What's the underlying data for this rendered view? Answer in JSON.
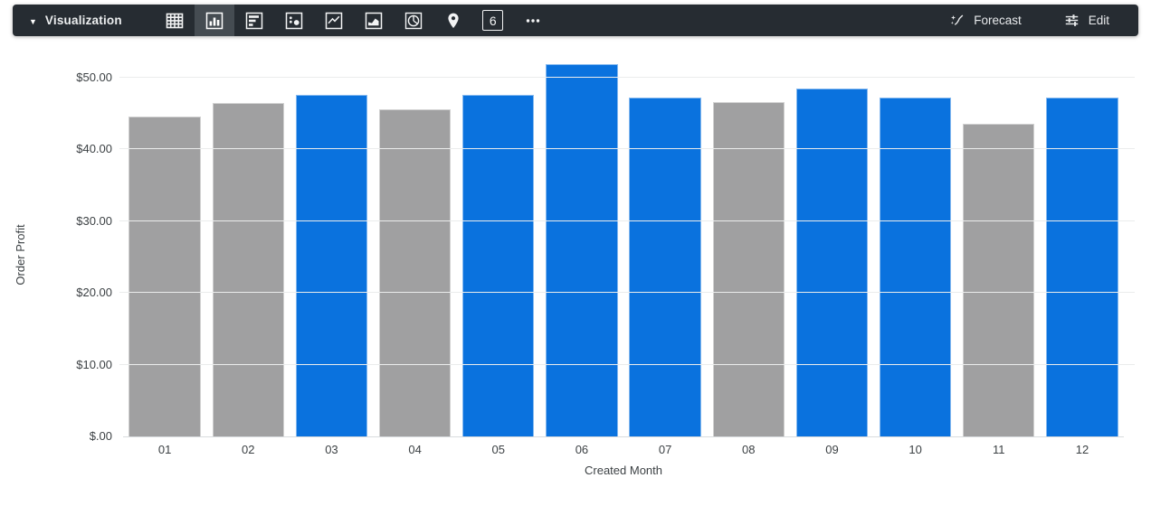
{
  "toolbar": {
    "title": "Visualization",
    "viz_types": [
      {
        "name": "table"
      },
      {
        "name": "column",
        "selected": true
      },
      {
        "name": "bar"
      },
      {
        "name": "scatter"
      },
      {
        "name": "line"
      },
      {
        "name": "area"
      },
      {
        "name": "pie"
      },
      {
        "name": "map"
      },
      {
        "name": "single-value",
        "glyph": "6"
      },
      {
        "name": "more"
      }
    ],
    "single_value_glyph": "6",
    "forecast_label": "Forecast",
    "edit_label": "Edit"
  },
  "chart_data": {
    "type": "bar",
    "title": "",
    "xlabel": "Created Month",
    "ylabel": "Order Profit",
    "categories": [
      "01",
      "02",
      "03",
      "04",
      "05",
      "06",
      "07",
      "08",
      "09",
      "10",
      "11",
      "12"
    ],
    "values": [
      44.5,
      46.4,
      47.6,
      45.5,
      47.6,
      51.9,
      47.2,
      46.6,
      48.5,
      47.2,
      43.6,
      47.2
    ],
    "bar_colors": [
      "gray",
      "gray",
      "blue",
      "gray",
      "blue",
      "blue",
      "blue",
      "gray",
      "blue",
      "blue",
      "gray",
      "blue"
    ],
    "colors": {
      "blue": "#0a72de",
      "gray": "#a0a0a1"
    },
    "ylim": [
      0,
      52.6
    ],
    "y_ticks": [
      {
        "value": 0,
        "label": "$.00"
      },
      {
        "value": 10,
        "label": "$10.00"
      },
      {
        "value": 20,
        "label": "$20.00"
      },
      {
        "value": 30,
        "label": "$30.00"
      },
      {
        "value": 40,
        "label": "$40.00"
      },
      {
        "value": 50,
        "label": "$50.00"
      }
    ],
    "grid": true,
    "legend": "none"
  }
}
